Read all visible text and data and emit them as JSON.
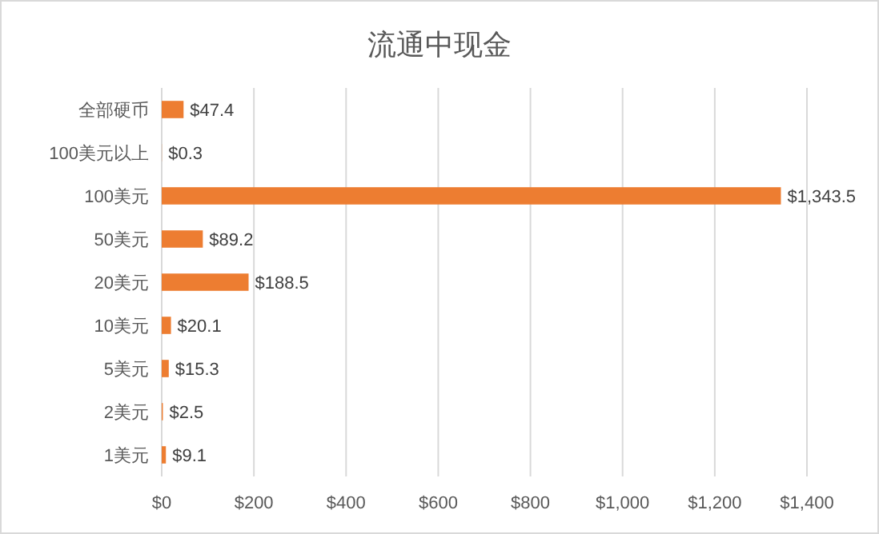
{
  "chart_data": {
    "type": "bar",
    "orientation": "horizontal",
    "title": "流通中现金",
    "categories": [
      "全部硬币",
      "100美元以上",
      "100美元",
      "50美元",
      "20美元",
      "10美元",
      "5美元",
      "2美元",
      "1美元"
    ],
    "values": [
      47.4,
      0.3,
      1343.5,
      89.2,
      188.5,
      20.1,
      15.3,
      2.5,
      9.1
    ],
    "value_labels": [
      "$47.4",
      "$0.3",
      "$1,343.5",
      "$89.2",
      "$188.5",
      "$20.1",
      "$15.3",
      "$2.5",
      "$9.1"
    ],
    "color": "#ed7d31",
    "xlim": [
      0,
      1400
    ],
    "xticks": [
      {
        "value": 0,
        "label": "$0"
      },
      {
        "value": 200,
        "label": "$200"
      },
      {
        "value": 400,
        "label": "$400"
      },
      {
        "value": 600,
        "label": "$600"
      },
      {
        "value": 800,
        "label": "$800"
      },
      {
        "value": 1000,
        "label": "$1,000"
      },
      {
        "value": 1200,
        "label": "$1,200"
      },
      {
        "value": 1400,
        "label": "$1,400"
      }
    ],
    "grid": "x"
  }
}
